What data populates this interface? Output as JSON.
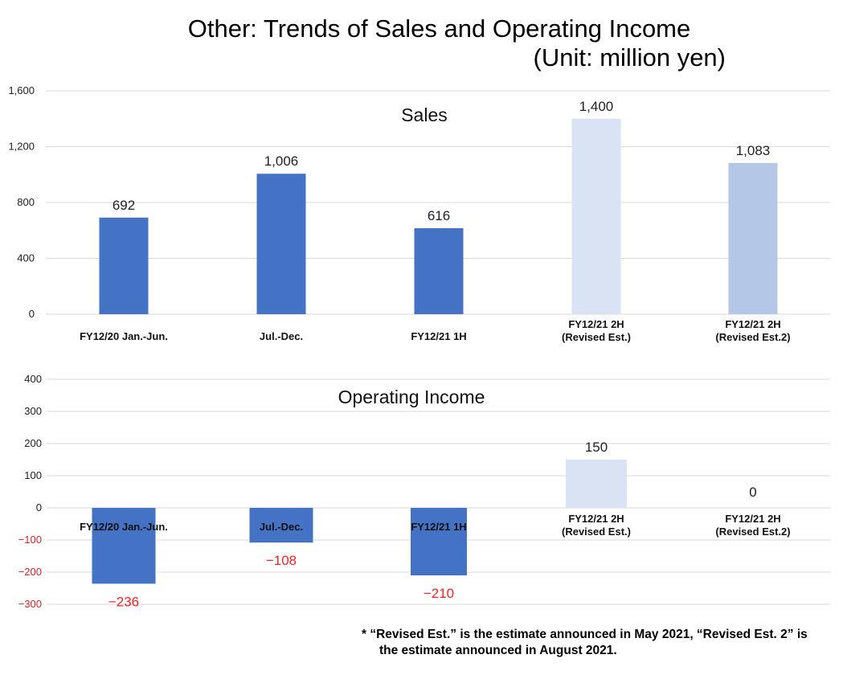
{
  "title": "Other: Trends of Sales and Operating Income",
  "unit": "(Unit: million yen)",
  "footnote": {
    "line1": "* “Revised Est.” is the estimate announced in May 2021, “Revised Est. 2” is",
    "line2": "the estimate announced in August 2021."
  },
  "colors": {
    "actual": "#4472c4",
    "revised_est": "#dae3f3",
    "revised_est2": "#b4c7e7",
    "negative_label": "#ff0000"
  },
  "chart_data": [
    {
      "type": "bar",
      "title": "Sales",
      "categories": [
        [
          "FY12/20 Jan.-Jun."
        ],
        [
          "Jul.-Dec."
        ],
        [
          "FY12/21 1H"
        ],
        [
          "FY12/21 2H",
          "(Revised Est.)"
        ],
        [
          "FY12/21 2H",
          "(Revised Est.2)"
        ]
      ],
      "values": [
        692,
        1006,
        616,
        1400,
        1083
      ],
      "value_labels": [
        "692",
        "1,006",
        "616",
        "1,400",
        "1,083"
      ],
      "ylim": [
        0,
        1600
      ],
      "yticks": [
        0,
        400,
        800,
        1200,
        1600
      ],
      "ytick_labels": [
        "0",
        "400",
        "800",
        "1,200",
        "1,600"
      ],
      "bar_colors": [
        "actual",
        "actual",
        "actual",
        "revised_est",
        "revised_est2"
      ],
      "grid": true
    },
    {
      "type": "bar",
      "title": "Operating Income",
      "categories": [
        [
          "FY12/20 Jan.-Jun."
        ],
        [
          "Jul.-Dec."
        ],
        [
          "FY12/21 1H"
        ],
        [
          "FY12/21 2H",
          "(Revised Est.)"
        ],
        [
          "FY12/21 2H",
          "(Revised Est.2)"
        ]
      ],
      "values": [
        -236,
        -108,
        -210,
        150,
        0
      ],
      "value_labels": [
        "−236",
        "−108",
        "−210",
        "150",
        "0"
      ],
      "ylim": [
        -300,
        400
      ],
      "yticks": [
        -300,
        -200,
        -100,
        0,
        100,
        200,
        300,
        400
      ],
      "ytick_labels": [
        "−300",
        "−200",
        "−100",
        "0",
        "100",
        "200",
        "300",
        "400"
      ],
      "bar_colors": [
        "actual",
        "actual",
        "actual",
        "revised_est",
        "revised_est2"
      ],
      "grid": true
    }
  ]
}
